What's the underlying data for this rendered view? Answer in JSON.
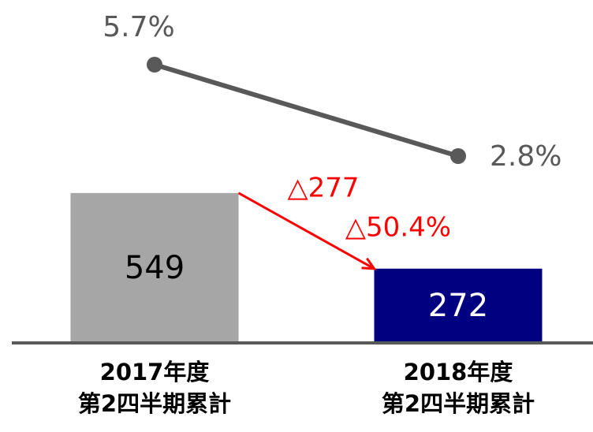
{
  "chart_data": {
    "type": "bar",
    "categories": [
      "2017年度\n第2四半期累計",
      "2018年度\n第2四半期累計"
    ],
    "series": [
      {
        "type": "bar",
        "values": [
          549,
          272
        ],
        "colors": [
          "#a6a6a6",
          "#000080"
        ],
        "label_colors": [
          "#000000",
          "#ffffff"
        ]
      },
      {
        "type": "line",
        "axis": "y2",
        "values": [
          5.7,
          2.8
        ],
        "value_labels": [
          "5.7%",
          "2.8%"
        ],
        "color": "#595959"
      }
    ],
    "ylim": [
      0,
      1250
    ],
    "y2lim": [
      -3.125,
      7.7
    ],
    "annotations": [
      {
        "text": "△277"
      },
      {
        "text": "△50.4%"
      }
    ],
    "annotation_color": "#ff0000"
  }
}
